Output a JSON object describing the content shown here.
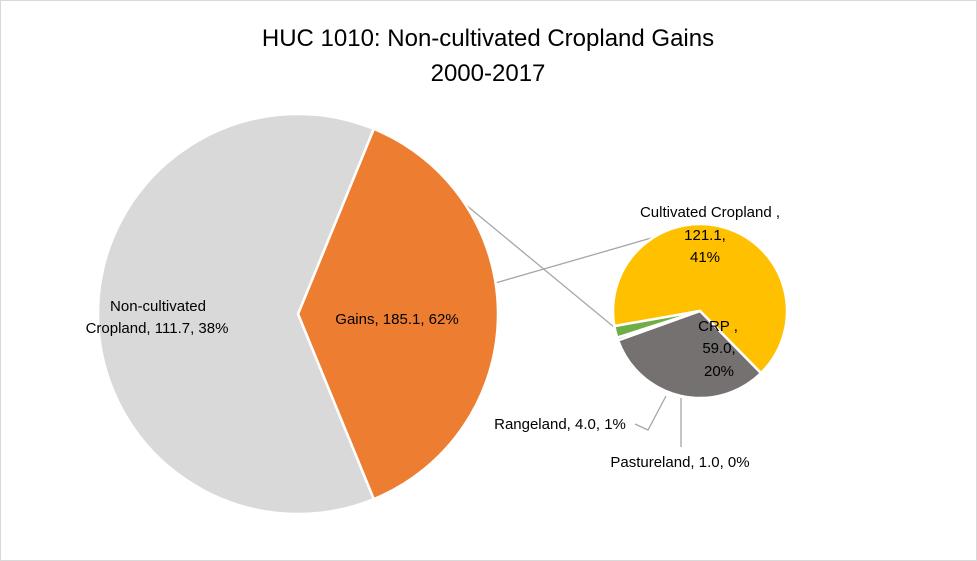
{
  "chart_data": {
    "type": "pie",
    "subtype": "pie-of-pie",
    "title": [
      "HUC 1010: Non-cultivated Cropland Gains",
      "2000-2017"
    ],
    "main_pie": [
      {
        "label": "Non-cultivated Cropland",
        "value": 111.7,
        "percent": "38%",
        "color": "#ED7D31"
      },
      {
        "label": "Gains",
        "value": 185.1,
        "percent": "62%",
        "color": "#D9D9D9"
      }
    ],
    "secondary_pie": [
      {
        "label": "Cultivated Cropland",
        "value": 121.1,
        "percent": "41%",
        "color": "#FFC000"
      },
      {
        "label": "CRP",
        "value": 59.0,
        "percent": "20%",
        "color": "#767171"
      },
      {
        "label": "Pastureland",
        "value": 1.0,
        "percent": "0%",
        "color": "#4472C4"
      },
      {
        "label": "Rangeland",
        "value": 4.0,
        "percent": "1%",
        "color": "#70AD47"
      }
    ],
    "labels": {
      "noncult": [
        "Non-cultivated",
        "Cropland, 111.7, 38%"
      ],
      "gains": "Gains, 185.1, 62%",
      "cultivated": [
        "Cultivated Cropland ,",
        "121.1,",
        "41%"
      ],
      "crp": [
        "CRP ,",
        "59.0,",
        "20%"
      ],
      "rangeland": "Rangeland, 4.0, 1%",
      "pastureland": "Pastureland, 1.0, 0%"
    }
  }
}
